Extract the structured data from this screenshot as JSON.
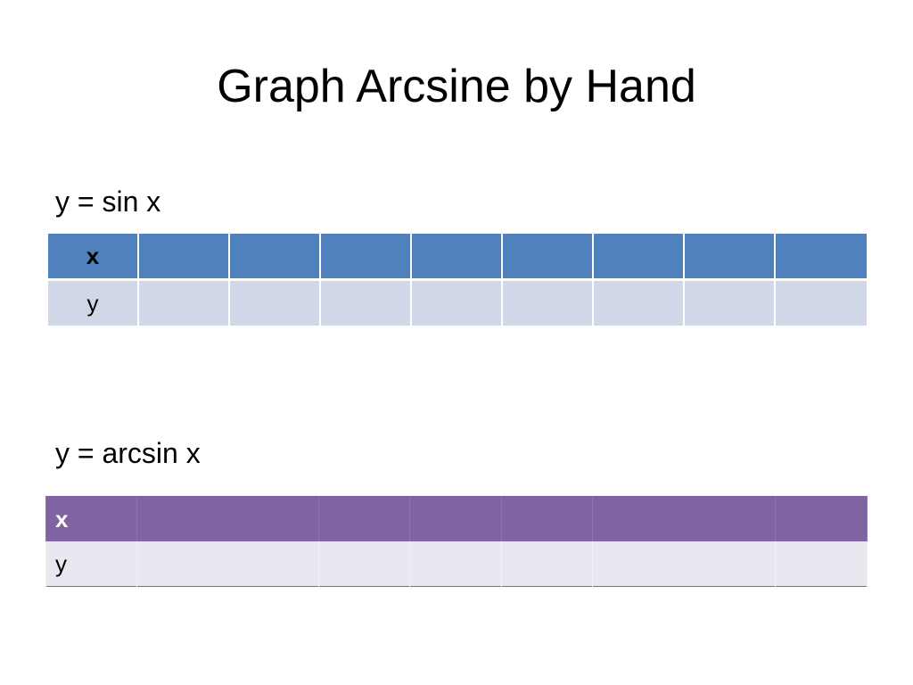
{
  "slide": {
    "title": "Graph Arcsine by Hand"
  },
  "sin_section": {
    "label": "y = sin x",
    "table": {
      "row_x_header": "x",
      "row_y_header": "y",
      "row_x_values": [
        "",
        "",
        "",
        "",
        "",
        "",
        "",
        ""
      ],
      "row_y_values": [
        "",
        "",
        "",
        "",
        "",
        "",
        "",
        ""
      ]
    }
  },
  "arcsin_section": {
    "label": "y = arcsin x",
    "table": {
      "row_x_header": "x",
      "row_y_header": "y",
      "row_x_values": [
        "",
        "",
        "",
        "",
        "",
        "",
        ""
      ],
      "row_y_values": [
        "",
        "",
        "",
        "",
        "",
        "",
        ""
      ]
    }
  },
  "colors": {
    "sin_header": "#4f81bd",
    "sin_row": "#d0d8e8",
    "arcsin_header": "#8064a2",
    "arcsin_row": "#ebe7f0"
  }
}
